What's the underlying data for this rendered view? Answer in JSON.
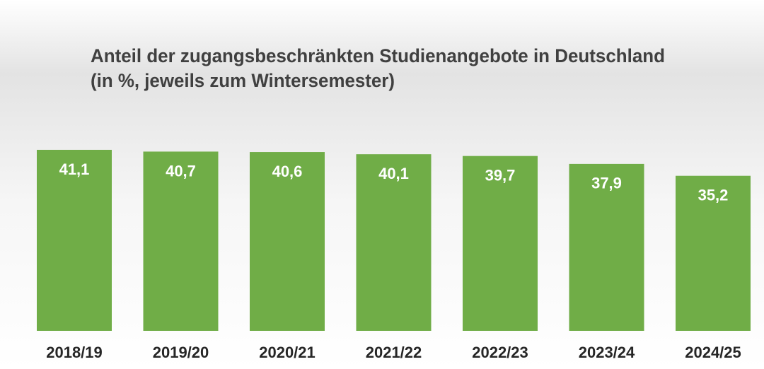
{
  "chart_data": {
    "type": "bar",
    "title": "Anteil der zugangsbeschränkten Studienangebote  in Deutschland",
    "subtitle": "(in %, jeweils zum Wintersemester)",
    "categories": [
      "2018/19",
      "2019/20",
      "2020/21",
      "2021/22",
      "2022/23",
      "2023/24",
      "2024/25"
    ],
    "values": [
      41.1,
      40.7,
      40.6,
      40.1,
      39.7,
      37.9,
      35.2
    ],
    "value_labels": [
      "41,1",
      "40,7",
      "40,6",
      "40,1",
      "39,7",
      "37,9",
      "35,2"
    ],
    "color": "#70ad47"
  }
}
